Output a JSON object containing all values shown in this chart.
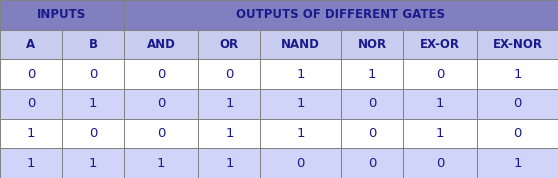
{
  "col_headers": [
    "A",
    "B",
    "AND",
    "OR",
    "NAND",
    "NOR",
    "EX-OR",
    "EX-NOR"
  ],
  "span_header_left": "INPUTS",
  "span_header_right": "OUTPUTS OF DIFFERENT GATES",
  "rows": [
    [
      "0",
      "0",
      "0",
      "0",
      "1",
      "1",
      "0",
      "1"
    ],
    [
      "0",
      "1",
      "0",
      "1",
      "1",
      "0",
      "1",
      "0"
    ],
    [
      "1",
      "0",
      "0",
      "1",
      "1",
      "0",
      "1",
      "0"
    ],
    [
      "1",
      "1",
      "1",
      "1",
      "0",
      "0",
      "0",
      "1"
    ]
  ],
  "header_bg": "#8080C0",
  "subheader_bg": "#C8CCEE",
  "row_bg_even": "#FFFFFF",
  "row_bg_odd": "#D0D4F8",
  "text_color": "#1A1A8C",
  "header_text_color": "#1A1A8C",
  "border_color": "#808080",
  "raw_widths": [
    1.0,
    1.0,
    1.2,
    1.0,
    1.3,
    1.0,
    1.2,
    1.3
  ],
  "header_fontsize": 8.5,
  "subheader_fontsize": 8.5,
  "data_fontsize": 9.5,
  "n_rows": 6,
  "fig_width": 5.58,
  "fig_height": 1.78
}
